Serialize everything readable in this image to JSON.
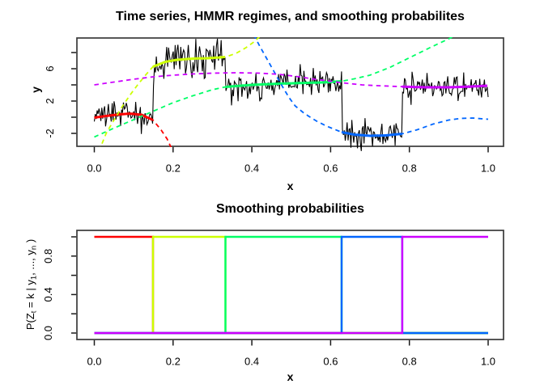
{
  "figure": {
    "background": "#ffffff",
    "axis_color": "#3a3a3a",
    "tick_color": "#1a1a1a"
  },
  "chart_data": [
    {
      "type": "line",
      "title": "Time series, HMMR regimes, and smoothing probabilites",
      "xlabel": "x",
      "ylabel": "y",
      "xlim": [
        0,
        1
      ],
      "ylim": [
        -3.6,
        9.8
      ],
      "x_ticks": [
        0,
        0.2,
        0.4,
        0.6,
        0.8,
        1.0
      ],
      "x_tick_labels": [
        "0.0",
        "0.2",
        "0.4",
        "0.6",
        "0.8",
        "1.0"
      ],
      "y_ticks": [
        -2,
        0,
        2,
        4,
        6,
        8
      ],
      "y_tick_labels": [
        "-2",
        "",
        "2",
        "",
        "6",
        ""
      ],
      "grid": false,
      "legend": "none",
      "series_color": "#000000",
      "n_points": 420,
      "transitions": [
        0.149,
        0.333,
        0.628,
        0.782
      ],
      "regimes": [
        {
          "name": "regime-1-red",
          "color": "#FF0000",
          "sd": 0.85,
          "interval": [
            0,
            0.149
          ],
          "curve": [
            [
              0,
              -0.05
            ],
            [
              0.03,
              0.15
            ],
            [
              0.06,
              0.33
            ],
            [
              0.09,
              0.45
            ],
            [
              0.12,
              0.3
            ],
            [
              0.149,
              -0.35
            ],
            [
              0.17,
              -1.6
            ],
            [
              0.185,
              -2.7
            ],
            [
              0.2,
              -4.3
            ]
          ]
        },
        {
          "name": "regime-2-yellow",
          "color": "#CCFF00",
          "sd": 1.05,
          "interval": [
            0.149,
            0.333
          ],
          "curve": [
            [
              0.012,
              -4.2
            ],
            [
              0.03,
              -2.0
            ],
            [
              0.05,
              -0.35
            ],
            [
              0.07,
              1.25
            ],
            [
              0.09,
              2.7
            ],
            [
              0.11,
              4.0
            ],
            [
              0.13,
              5.2
            ],
            [
              0.149,
              6.25
            ],
            [
              0.18,
              6.85
            ],
            [
              0.21,
              7.1
            ],
            [
              0.25,
              7.25
            ],
            [
              0.29,
              7.3
            ],
            [
              0.333,
              7.45
            ],
            [
              0.36,
              7.9
            ],
            [
              0.385,
              8.6
            ],
            [
              0.405,
              9.3
            ],
            [
              0.425,
              10.2
            ]
          ]
        },
        {
          "name": "regime-3-green",
          "color": "#00FF66",
          "sd": 0.95,
          "interval": [
            0.333,
            0.628
          ],
          "curve": [
            [
              0,
              -2.45
            ],
            [
              0.05,
              -1.35
            ],
            [
              0.1,
              -0.3
            ],
            [
              0.15,
              0.75
            ],
            [
              0.2,
              1.8
            ],
            [
              0.25,
              2.65
            ],
            [
              0.3,
              3.4
            ],
            [
              0.333,
              3.75
            ],
            [
              0.4,
              4.0
            ],
            [
              0.47,
              4.15
            ],
            [
              0.54,
              4.25
            ],
            [
              0.58,
              4.3
            ],
            [
              0.628,
              4.45
            ],
            [
              0.66,
              4.75
            ],
            [
              0.7,
              5.2
            ],
            [
              0.75,
              6.15
            ],
            [
              0.8,
              7.35
            ],
            [
              0.85,
              8.55
            ],
            [
              0.9,
              9.7
            ],
            [
              0.92,
              10.2
            ]
          ]
        },
        {
          "name": "regime-4-blue",
          "color": "#0066FF",
          "sd": 0.85,
          "interval": [
            0.628,
            0.782
          ],
          "curve": [
            [
              0.405,
              10.2
            ],
            [
              0.42,
              8.8
            ],
            [
              0.435,
              7.5
            ],
            [
              0.45,
              6.2
            ],
            [
              0.465,
              4.9
            ],
            [
              0.48,
              3.6
            ],
            [
              0.495,
              2.4
            ],
            [
              0.51,
              1.4
            ],
            [
              0.53,
              0.6
            ],
            [
              0.545,
              0.1
            ],
            [
              0.565,
              -0.5
            ],
            [
              0.59,
              -1.1
            ],
            [
              0.61,
              -1.5
            ],
            [
              0.628,
              -1.85
            ],
            [
              0.66,
              -2.15
            ],
            [
              0.7,
              -2.3
            ],
            [
              0.74,
              -2.25
            ],
            [
              0.782,
              -2.05
            ],
            [
              0.82,
              -1.55
            ],
            [
              0.86,
              -0.85
            ],
            [
              0.9,
              -0.35
            ],
            [
              0.93,
              -0.15
            ],
            [
              0.96,
              -0.1
            ],
            [
              1.0,
              -0.25
            ]
          ]
        },
        {
          "name": "regime-5-magenta",
          "color": "#CC00FF",
          "sd": 0.8,
          "interval": [
            0.782,
            1.0
          ],
          "curve": [
            [
              0,
              4.0
            ],
            [
              0.05,
              4.35
            ],
            [
              0.1,
              4.7
            ],
            [
              0.15,
              5.0
            ],
            [
              0.2,
              5.2
            ],
            [
              0.25,
              5.35
            ],
            [
              0.3,
              5.45
            ],
            [
              0.36,
              5.5
            ],
            [
              0.42,
              5.45
            ],
            [
              0.47,
              5.3
            ],
            [
              0.52,
              5.0
            ],
            [
              0.56,
              4.7
            ],
            [
              0.6,
              4.45
            ],
            [
              0.64,
              4.2
            ],
            [
              0.68,
              4.0
            ],
            [
              0.72,
              3.9
            ],
            [
              0.782,
              3.78
            ],
            [
              0.84,
              3.7
            ],
            [
              0.9,
              3.7
            ],
            [
              0.95,
              3.78
            ],
            [
              1.0,
              3.9
            ]
          ]
        }
      ]
    },
    {
      "type": "step",
      "title": "Smoothing probabilities",
      "xlabel": "x",
      "ylabel": "P(Zt = k | y1, ..., yn )",
      "ylabel_parts": [
        {
          "t": "P(Z"
        },
        {
          "t": "t",
          "sub": true
        },
        {
          "t": " = k | y"
        },
        {
          "t": "1",
          "sub": true
        },
        {
          "t": ", ..., y"
        },
        {
          "t": "n",
          "sub": true
        },
        {
          "t": " )"
        }
      ],
      "xlim": [
        0,
        1
      ],
      "ylim": [
        0,
        1
      ],
      "x_ticks": [
        0,
        0.2,
        0.4,
        0.6,
        0.8,
        1.0
      ],
      "x_tick_labels": [
        "0.0",
        "0.2",
        "0.4",
        "0.6",
        "0.8",
        "1.0"
      ],
      "y_ticks": [
        0,
        0.2,
        0.4,
        0.6,
        0.8,
        1.0
      ],
      "y_tick_labels": [
        "0.0",
        "",
        "0.4",
        "",
        "0.8",
        ""
      ],
      "grid": false,
      "legend": "none",
      "transitions": [
        0.149,
        0.333,
        0.628,
        0.782
      ],
      "series": [
        {
          "name": "prob-regime-1-red",
          "color": "#FF0000",
          "high_interval": [
            0,
            0.149
          ]
        },
        {
          "name": "prob-regime-2-yellow",
          "color": "#CCFF00",
          "high_interval": [
            0.149,
            0.333
          ]
        },
        {
          "name": "prob-regime-3-green",
          "color": "#00FF66",
          "high_interval": [
            0.333,
            0.628
          ]
        },
        {
          "name": "prob-regime-4-blue",
          "color": "#0066FF",
          "high_interval": [
            0.628,
            0.782
          ]
        },
        {
          "name": "prob-regime-5-magenta",
          "color": "#CC00FF",
          "high_interval": [
            0.782,
            1.0
          ]
        }
      ]
    }
  ]
}
